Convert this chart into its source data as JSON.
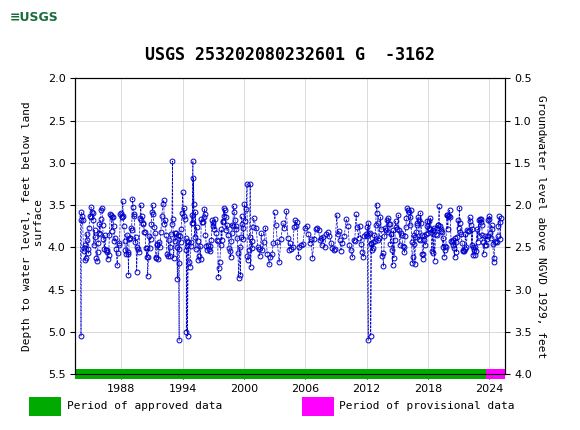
{
  "title": "USGS 253202080232601 G  -3162",
  "ylabel_left": "Depth to water level, feet below land\n surface",
  "ylabel_right": "Groundwater level above NGVD 1929, feet",
  "ylim_left": [
    2.0,
    5.5
  ],
  "ylim_right": [
    4.0,
    0.5
  ],
  "yticks_left": [
    2.0,
    2.5,
    3.0,
    3.5,
    4.0,
    4.5,
    5.0,
    5.5
  ],
  "yticks_right": [
    4.0,
    3.5,
    3.0,
    2.5,
    2.0,
    1.5,
    1.0,
    0.5
  ],
  "xlim": [
    1983.5,
    2025.5
  ],
  "xticks": [
    1988,
    1994,
    2000,
    2006,
    2012,
    2018,
    2024
  ],
  "header_color": "#1a6b3c",
  "data_color": "#0000cc",
  "approved_color": "#00aa00",
  "provisional_color": "#ff00ff",
  "background_color": "#ffffff",
  "grid_color": "#cccccc",
  "title_fontsize": 12,
  "axis_fontsize": 8,
  "tick_fontsize": 8,
  "legend_fontsize": 8,
  "provisional_start": 2023.7
}
